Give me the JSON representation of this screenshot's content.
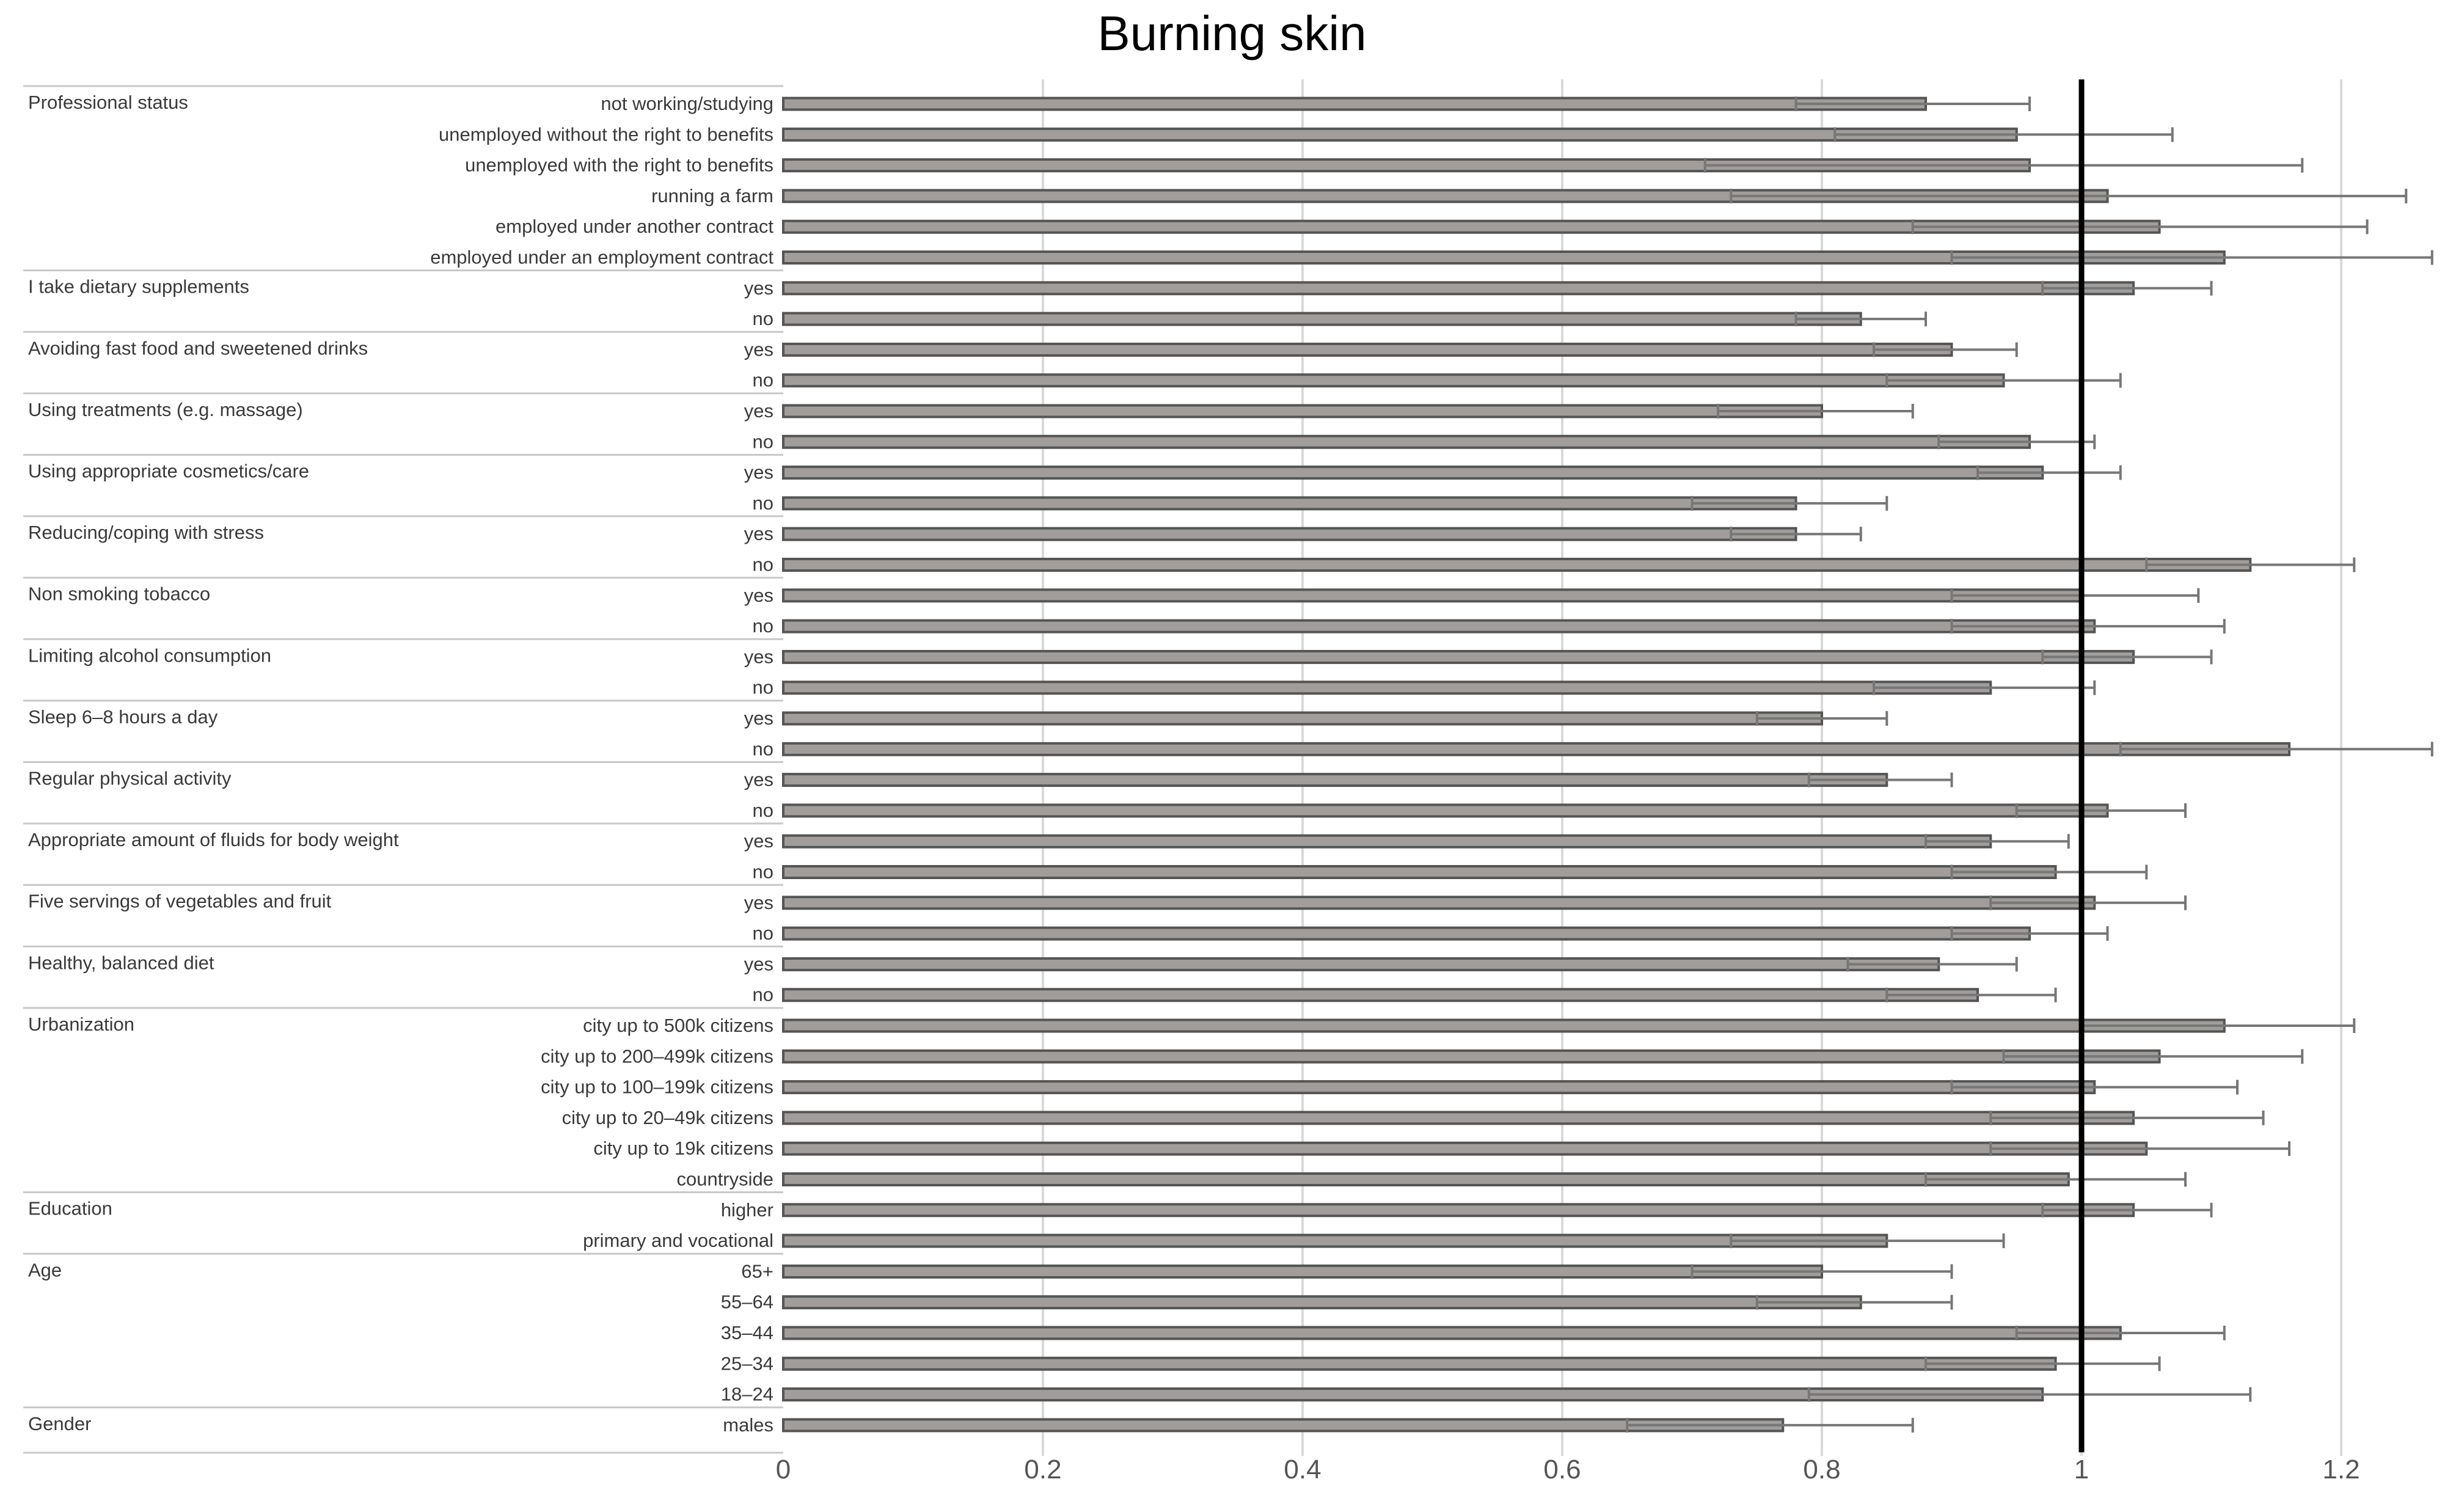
{
  "chart_data": {
    "type": "bar",
    "orientation": "horizontal",
    "title": "Burning skin",
    "xlabel": "",
    "ylabel": "",
    "xlim": [
      0,
      1.25
    ],
    "x_ticks": [
      "0",
      "0.2",
      "0.4",
      "0.6",
      "0.8",
      "1",
      "1.2"
    ],
    "x_tick_values": [
      0,
      0.2,
      0.4,
      0.6,
      0.8,
      1.0,
      1.2
    ],
    "reference_line": 1.0,
    "grid": true,
    "colors": {
      "bar": "#a09d9a",
      "bar_edge": "#555555",
      "error": "#777777",
      "reference": "#000000",
      "grid": "#d9d9d9"
    },
    "groups": [
      {
        "label": "Professional status",
        "items": [
          {
            "label": "not working/studying",
            "value": 0.88,
            "low": 0.78,
            "high": 0.96
          },
          {
            "label": "unemployed without the right to benefits",
            "value": 0.95,
            "low": 0.81,
            "high": 1.07
          },
          {
            "label": "unemployed with the right to benefits",
            "value": 0.96,
            "low": 0.71,
            "high": 1.17
          },
          {
            "label": "running a farm",
            "value": 1.02,
            "low": 0.73,
            "high": 1.25
          },
          {
            "label": "employed under another contract",
            "value": 1.06,
            "low": 0.87,
            "high": 1.22
          },
          {
            "label": "employed under an employment contract",
            "value": 1.11,
            "low": 0.9,
            "high": 1.27
          }
        ]
      },
      {
        "label": "I take dietary supplements",
        "items": [
          {
            "label": "yes",
            "value": 1.04,
            "low": 0.97,
            "high": 1.1
          },
          {
            "label": "no",
            "value": 0.83,
            "low": 0.78,
            "high": 0.88
          }
        ]
      },
      {
        "label": "Avoiding fast food and sweetened drinks",
        "items": [
          {
            "label": "yes",
            "value": 0.9,
            "low": 0.84,
            "high": 0.95
          },
          {
            "label": "no",
            "value": 0.94,
            "low": 0.85,
            "high": 1.03
          }
        ]
      },
      {
        "label": "Using treatments (e.g. massage)",
        "items": [
          {
            "label": "yes",
            "value": 0.8,
            "low": 0.72,
            "high": 0.87
          },
          {
            "label": "no",
            "value": 0.96,
            "low": 0.89,
            "high": 1.01
          }
        ]
      },
      {
        "label": "Using appropriate cosmetics/care",
        "items": [
          {
            "label": "yes",
            "value": 0.97,
            "low": 0.92,
            "high": 1.03
          },
          {
            "label": "no",
            "value": 0.78,
            "low": 0.7,
            "high": 0.85
          }
        ]
      },
      {
        "label": "Reducing/coping with stress",
        "items": [
          {
            "label": "yes",
            "value": 0.78,
            "low": 0.73,
            "high": 0.83
          },
          {
            "label": "no",
            "value": 1.13,
            "low": 1.05,
            "high": 1.21
          }
        ]
      },
      {
        "label": "Non smoking tobacco",
        "items": [
          {
            "label": "yes",
            "value": 1.0,
            "low": 0.9,
            "high": 1.09
          },
          {
            "label": "no",
            "value": 1.01,
            "low": 0.9,
            "high": 1.11
          }
        ]
      },
      {
        "label": "Limiting alcohol consumption",
        "items": [
          {
            "label": "yes",
            "value": 1.04,
            "low": 0.97,
            "high": 1.1
          },
          {
            "label": "no",
            "value": 0.93,
            "low": 0.84,
            "high": 1.01
          }
        ]
      },
      {
        "label": "Sleep 6–8 hours a day",
        "items": [
          {
            "label": "yes",
            "value": 0.8,
            "low": 0.75,
            "high": 0.85
          },
          {
            "label": "no",
            "value": 1.16,
            "low": 1.03,
            "high": 1.27
          }
        ]
      },
      {
        "label": "Regular physical activity",
        "items": [
          {
            "label": "yes",
            "value": 0.85,
            "low": 0.79,
            "high": 0.9
          },
          {
            "label": "no",
            "value": 1.02,
            "low": 0.95,
            "high": 1.08
          }
        ]
      },
      {
        "label": "Appropriate amount of fluids for body weight",
        "items": [
          {
            "label": "yes",
            "value": 0.93,
            "low": 0.88,
            "high": 0.99
          },
          {
            "label": "no",
            "value": 0.98,
            "low": 0.9,
            "high": 1.05
          }
        ]
      },
      {
        "label": "Five servings of vegetables and fruit",
        "items": [
          {
            "label": "yes",
            "value": 1.01,
            "low": 0.93,
            "high": 1.08
          },
          {
            "label": "no",
            "value": 0.96,
            "low": 0.9,
            "high": 1.02
          }
        ]
      },
      {
        "label": "Healthy, balanced diet",
        "items": [
          {
            "label": "yes",
            "value": 0.89,
            "low": 0.82,
            "high": 0.95
          },
          {
            "label": "no",
            "value": 0.92,
            "low": 0.85,
            "high": 0.98
          }
        ]
      },
      {
        "label": "Urbanization",
        "items": [
          {
            "label": "city up to 500k citizens",
            "value": 1.11,
            "low": 1.0,
            "high": 1.21
          },
          {
            "label": "city up to 200–499k citizens",
            "value": 1.06,
            "low": 0.94,
            "high": 1.17
          },
          {
            "label": "city up to 100–199k citizens",
            "value": 1.01,
            "low": 0.9,
            "high": 1.12
          },
          {
            "label": "city up to 20–49k citizens",
            "value": 1.04,
            "low": 0.93,
            "high": 1.14
          },
          {
            "label": "city up to 19k citizens",
            "value": 1.05,
            "low": 0.93,
            "high": 1.16
          },
          {
            "label": "countryside",
            "value": 0.99,
            "low": 0.88,
            "high": 1.08
          }
        ]
      },
      {
        "label": "Education",
        "items": [
          {
            "label": "higher",
            "value": 1.04,
            "low": 0.97,
            "high": 1.1
          },
          {
            "label": "primary and vocational",
            "value": 0.85,
            "low": 0.73,
            "high": 0.94
          }
        ]
      },
      {
        "label": "Age",
        "items": [
          {
            "label": "65+",
            "value": 0.8,
            "low": 0.7,
            "high": 0.9
          },
          {
            "label": "55–64",
            "value": 0.83,
            "low": 0.75,
            "high": 0.9
          },
          {
            "label": "35–44",
            "value": 1.03,
            "low": 0.95,
            "high": 1.11
          },
          {
            "label": "25–34",
            "value": 0.98,
            "low": 0.88,
            "high": 1.06
          },
          {
            "label": "18–24",
            "value": 0.97,
            "low": 0.79,
            "high": 1.13
          }
        ]
      },
      {
        "label": "Gender",
        "items": [
          {
            "label": "males",
            "value": 0.77,
            "low": 0.65,
            "high": 0.87
          }
        ]
      }
    ]
  }
}
